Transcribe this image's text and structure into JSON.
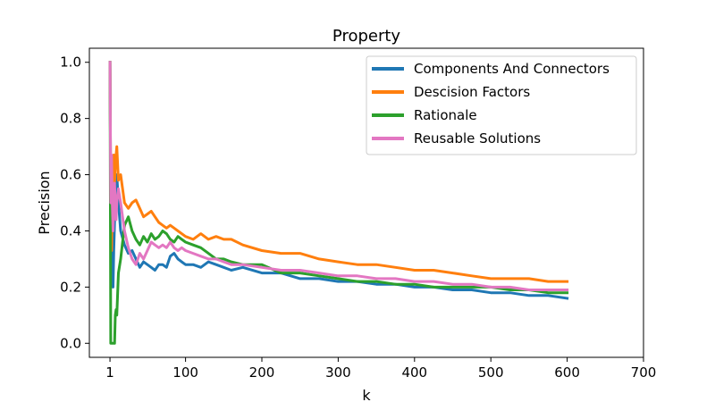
{
  "chart_data": {
    "type": "line",
    "title": "Property",
    "xlabel": "k",
    "ylabel": "Precision",
    "xlim": [
      -26,
      700
    ],
    "ylim": [
      -0.05,
      1.05
    ],
    "xticks": [
      1,
      100,
      200,
      300,
      400,
      500,
      600,
      700
    ],
    "yticks": [
      "0.0",
      "0.2",
      "0.4",
      "0.6",
      "0.8",
      "1.0"
    ],
    "grid": false,
    "legend_position": "top-right",
    "series": [
      {
        "name": "Components And Connectors",
        "color": "#1f77b4",
        "x": [
          1,
          2,
          3,
          4,
          5,
          6,
          7,
          8,
          9,
          10,
          12,
          15,
          20,
          25,
          30,
          35,
          40,
          45,
          50,
          55,
          60,
          65,
          70,
          75,
          80,
          85,
          90,
          95,
          100,
          110,
          120,
          130,
          140,
          150,
          160,
          175,
          200,
          225,
          250,
          275,
          300,
          325,
          350,
          375,
          400,
          425,
          450,
          475,
          500,
          525,
          550,
          575,
          600
        ],
        "y": [
          1.0,
          0.5,
          0.33,
          0.25,
          0.2,
          0.33,
          0.43,
          0.5,
          0.55,
          0.6,
          0.5,
          0.4,
          0.35,
          0.32,
          0.33,
          0.3,
          0.27,
          0.29,
          0.28,
          0.27,
          0.26,
          0.28,
          0.28,
          0.27,
          0.31,
          0.32,
          0.3,
          0.29,
          0.28,
          0.28,
          0.27,
          0.29,
          0.28,
          0.27,
          0.26,
          0.27,
          0.25,
          0.25,
          0.23,
          0.23,
          0.22,
          0.22,
          0.21,
          0.21,
          0.2,
          0.2,
          0.19,
          0.19,
          0.18,
          0.18,
          0.17,
          0.17,
          0.16
        ]
      },
      {
        "name": "Descision Factors",
        "color": "#ff7f0e",
        "x": [
          1,
          2,
          3,
          4,
          5,
          6,
          7,
          8,
          9,
          10,
          12,
          15,
          20,
          25,
          30,
          35,
          40,
          45,
          50,
          55,
          60,
          65,
          70,
          75,
          80,
          85,
          90,
          95,
          100,
          110,
          120,
          130,
          140,
          150,
          160,
          175,
          200,
          225,
          250,
          275,
          300,
          325,
          350,
          375,
          400,
          425,
          450,
          475,
          500,
          525,
          550,
          575,
          600
        ],
        "y": [
          1.0,
          0.5,
          0.33,
          0.5,
          0.6,
          0.67,
          0.57,
          0.63,
          0.67,
          0.7,
          0.58,
          0.6,
          0.5,
          0.48,
          0.5,
          0.51,
          0.48,
          0.45,
          0.46,
          0.47,
          0.45,
          0.43,
          0.42,
          0.41,
          0.42,
          0.41,
          0.4,
          0.39,
          0.38,
          0.37,
          0.39,
          0.37,
          0.38,
          0.37,
          0.37,
          0.35,
          0.33,
          0.32,
          0.32,
          0.3,
          0.29,
          0.28,
          0.28,
          0.27,
          0.26,
          0.26,
          0.25,
          0.24,
          0.23,
          0.23,
          0.23,
          0.22,
          0.22
        ]
      },
      {
        "name": "Rationale",
        "color": "#2ca02c",
        "x": [
          1,
          2,
          3,
          4,
          5,
          6,
          7,
          8,
          9,
          10,
          12,
          15,
          20,
          25,
          30,
          35,
          40,
          45,
          50,
          55,
          60,
          65,
          70,
          75,
          80,
          85,
          90,
          95,
          100,
          110,
          120,
          130,
          140,
          150,
          160,
          175,
          200,
          225,
          250,
          275,
          300,
          325,
          350,
          375,
          400,
          425,
          450,
          475,
          500,
          525,
          550,
          575,
          600
        ],
        "y": [
          1.0,
          0.0,
          0.0,
          0.0,
          0.0,
          0.0,
          0.0,
          0.1,
          0.12,
          0.1,
          0.25,
          0.3,
          0.42,
          0.45,
          0.4,
          0.37,
          0.35,
          0.38,
          0.36,
          0.39,
          0.37,
          0.38,
          0.4,
          0.39,
          0.37,
          0.36,
          0.38,
          0.37,
          0.36,
          0.35,
          0.34,
          0.32,
          0.3,
          0.3,
          0.29,
          0.28,
          0.28,
          0.25,
          0.25,
          0.24,
          0.23,
          0.22,
          0.22,
          0.21,
          0.21,
          0.2,
          0.2,
          0.2,
          0.2,
          0.19,
          0.19,
          0.18,
          0.18
        ]
      },
      {
        "name": "Reusable Solutions",
        "color": "#e377c2",
        "x": [
          1,
          2,
          3,
          4,
          5,
          6,
          7,
          8,
          9,
          10,
          12,
          15,
          20,
          25,
          30,
          35,
          40,
          45,
          50,
          55,
          60,
          65,
          70,
          75,
          80,
          85,
          90,
          95,
          100,
          110,
          120,
          130,
          140,
          150,
          160,
          175,
          200,
          225,
          250,
          275,
          300,
          325,
          350,
          375,
          400,
          425,
          450,
          475,
          500,
          525,
          550,
          575,
          600
        ],
        "y": [
          1.0,
          0.5,
          0.67,
          0.5,
          0.4,
          0.5,
          0.57,
          0.5,
          0.44,
          0.5,
          0.55,
          0.5,
          0.4,
          0.34,
          0.3,
          0.28,
          0.32,
          0.3,
          0.33,
          0.36,
          0.35,
          0.34,
          0.35,
          0.34,
          0.36,
          0.34,
          0.33,
          0.34,
          0.33,
          0.32,
          0.31,
          0.3,
          0.3,
          0.29,
          0.28,
          0.28,
          0.27,
          0.26,
          0.26,
          0.25,
          0.24,
          0.24,
          0.23,
          0.23,
          0.22,
          0.22,
          0.21,
          0.21,
          0.2,
          0.2,
          0.19,
          0.19,
          0.19
        ]
      }
    ]
  }
}
